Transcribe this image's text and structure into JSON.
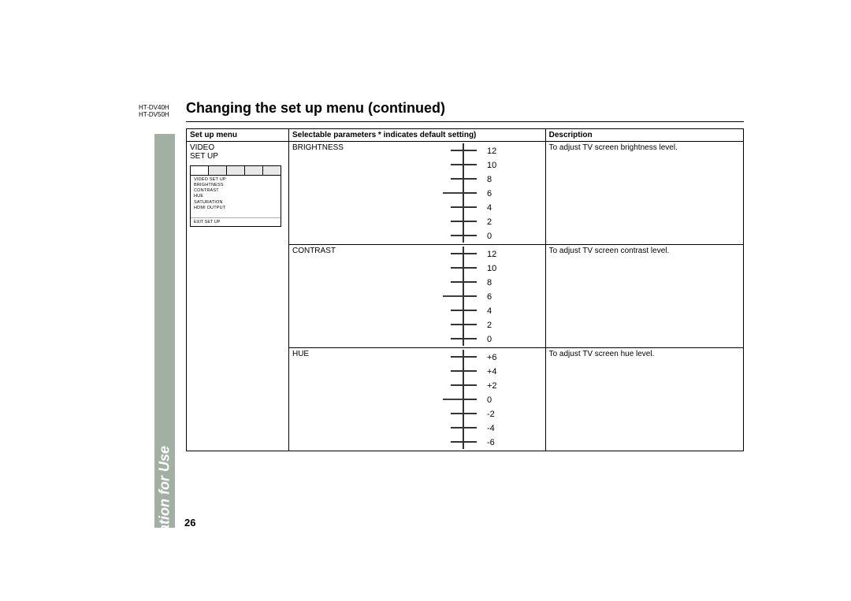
{
  "models": [
    "HT-DV40H",
    "HT-DV50H"
  ],
  "title": "Changing the set up menu (continued)",
  "sidebar_label": "Preparation for Use",
  "page_number": "26",
  "headers": {
    "setup": "Set up menu",
    "params": "Selectable parameters * indicates default setting)",
    "desc": "Description"
  },
  "setup_label": "VIDEO\nSET UP",
  "menu_screenshot": {
    "tabs": [
      "",
      "",
      "",
      "",
      ""
    ],
    "title": "VIDEO SET UP",
    "items": [
      "BRIGHTNESS",
      "CONTRAST",
      "HUE",
      "SATURATION",
      "HDMI OUTPUT"
    ],
    "exit": "EXIT SET UP"
  },
  "rows": [
    {
      "param": "BRIGHTNESS",
      "desc": "To  adjust TV screen brightness level.",
      "scale": {
        "values": [
          "12",
          "10",
          "8",
          "6",
          "4",
          "2",
          "0"
        ],
        "indicator_index": 3
      }
    },
    {
      "param": "CONTRAST",
      "desc": "To adjust TV screen contrast level.",
      "scale": {
        "values": [
          "12",
          "10",
          "8",
          "6",
          "4",
          "2",
          "0"
        ],
        "indicator_index": 3
      }
    },
    {
      "param": "HUE",
      "desc": "To adjust TV screen hue level.",
      "scale": {
        "values": [
          "+6",
          "+4",
          "+2",
          "0",
          "-2",
          "-4",
          "-6"
        ],
        "indicator_index": 3
      }
    }
  ]
}
